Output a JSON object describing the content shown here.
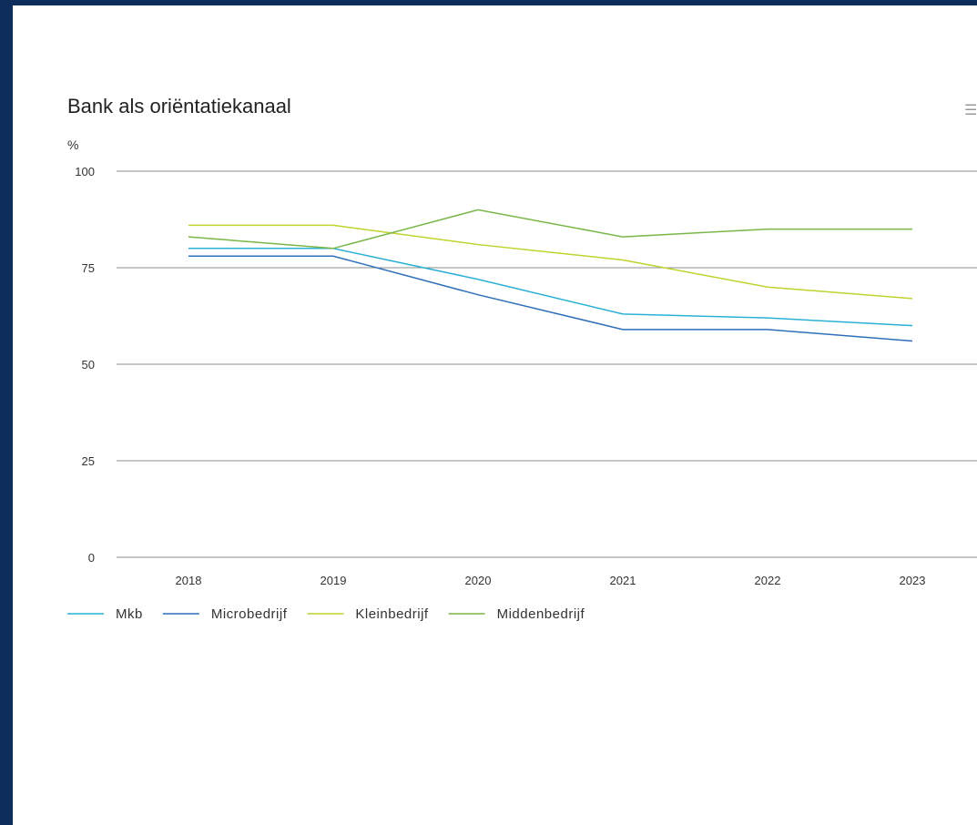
{
  "chart_data": {
    "type": "line",
    "title": "Bank als oriëntatiekanaal",
    "ylabel": "%",
    "xlabel": "",
    "categories": [
      "2018",
      "2019",
      "2020",
      "2021",
      "2022",
      "2023"
    ],
    "ylim": [
      0,
      100
    ],
    "yticks": [
      0,
      25,
      50,
      75,
      100
    ],
    "grid": true,
    "legend_position": "bottom-left",
    "series": [
      {
        "name": "Mkb",
        "color": "#2ab0d6",
        "values": [
          80,
          80,
          72,
          63,
          62,
          60
        ]
      },
      {
        "name": "Microbedrijf",
        "color": "#2f6fba",
        "values": [
          78,
          78,
          68,
          59,
          59,
          56
        ]
      },
      {
        "name": "Kleinbedrijf",
        "color": "#bfd22e",
        "values": [
          86,
          86,
          81,
          77,
          70,
          67
        ]
      },
      {
        "name": "Middenbedrijf",
        "color": "#7ab648",
        "values": [
          83,
          80,
          90,
          83,
          85,
          85
        ]
      }
    ]
  },
  "toolbar": {
    "menu_icon": "menu-icon"
  }
}
